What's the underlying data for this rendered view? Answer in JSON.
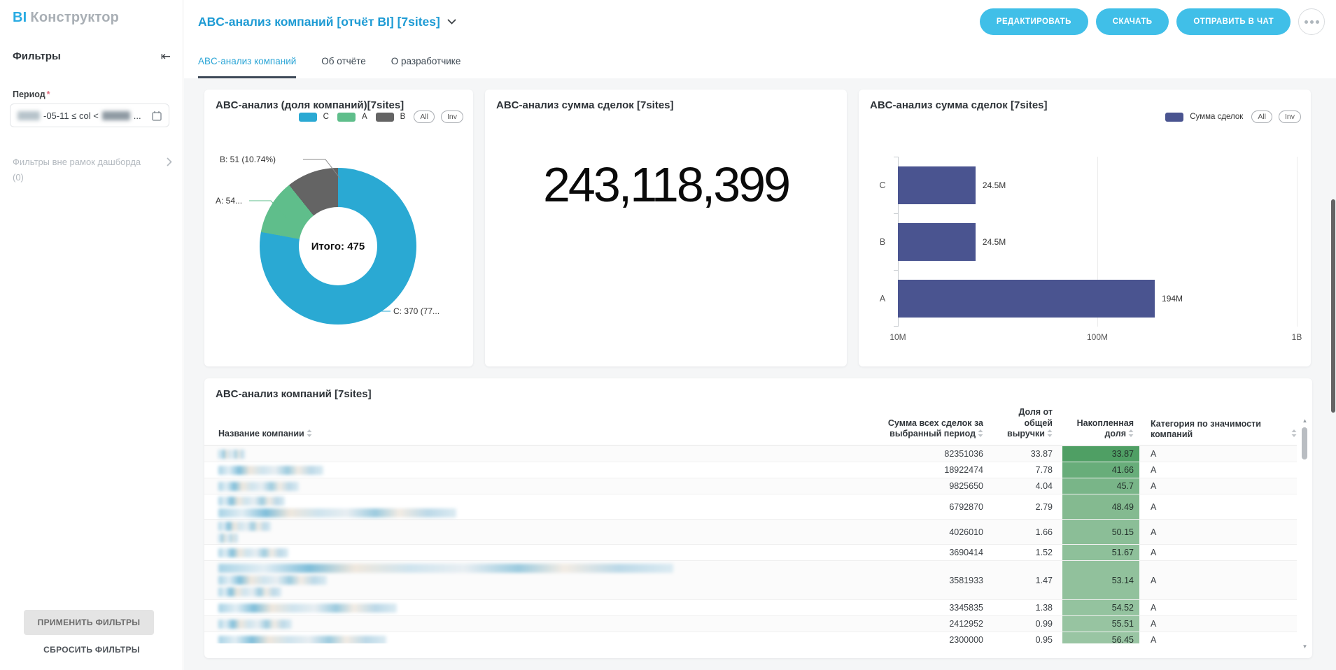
{
  "app": {
    "logo_primary": "BI",
    "logo_secondary": "Конструктор"
  },
  "sidebar": {
    "panel_title": "Фильтры",
    "collapse_icon": "⇤",
    "period_label": "Период",
    "period_required": "*",
    "period_value_mid": "-05-11 ≤ col <",
    "period_value_tail": "...",
    "outer_filters_label": "Фильтры вне рамок дашборда",
    "outer_filters_count": "(0)",
    "apply_button": "ПРИМЕНИТЬ ФИЛЬТРЫ",
    "reset_button": "СБРОСИТЬ ФИЛЬТРЫ"
  },
  "header": {
    "report_title": "ABC-анализ компаний [отчёт BI] [7sites]",
    "edit_button": "РЕДАКТИРОВАТЬ",
    "download_button": "СКАЧАТЬ",
    "send_chat_button": "ОТПРАВИТЬ В ЧАТ"
  },
  "tabs": {
    "tab1": "ABC-анализ компаний",
    "tab2": "Об отчёте",
    "tab3": "О разработчике"
  },
  "donut_card": {
    "title": "ABC-анализ (доля компаний)[7sites]",
    "legend": [
      {
        "label": "C",
        "color": "#2aa9d3"
      },
      {
        "label": "A",
        "color": "#5fbe8b"
      },
      {
        "label": "B",
        "color": "#646464"
      }
    ],
    "all_button": "All",
    "inv_button": "Inv",
    "center_label": "Итого: 475",
    "label_b": "B: 51 (10.74%)",
    "label_a": "A: 54...",
    "label_c": "C: 370 (77..."
  },
  "kpi_card": {
    "title": "ABC-анализ сумма сделок [7sites]",
    "value": "243,118,399"
  },
  "bar_card": {
    "title": "ABC-анализ сумма сделок [7sites]",
    "legend_label": "Сумма сделок",
    "legend_color": "#4a5490",
    "all_button": "All",
    "inv_button": "Inv"
  },
  "table_card": {
    "title": "ABC-анализ компаний [7sites]",
    "columns": [
      "Название компании",
      "Сумма всех сделок за выбранный период",
      "Доля от общей выручки",
      "Накопленная доля",
      "Категория по значимости компаний"
    ]
  },
  "chart_data": [
    {
      "type": "pie",
      "title": "ABC-анализ (доля компаний)[7sites]",
      "categories": [
        "C",
        "A",
        "B"
      ],
      "values": [
        370,
        54,
        51
      ],
      "percentages": [
        77.89,
        11.37,
        10.74
      ],
      "total": 475,
      "total_label": "Итого: 475",
      "colors": [
        "#2aa9d3",
        "#5fbe8b",
        "#646464"
      ],
      "legend_position": "top-right",
      "labels": [
        "C: 370 (77...",
        "A: 54...",
        "B: 51 (10.74%)"
      ]
    },
    {
      "type": "kpi",
      "title": "ABC-анализ сумма сделок [7sites]",
      "value": 243118399,
      "display": "243,118,399"
    },
    {
      "type": "bar",
      "title": "ABC-анализ сумма сделок [7sites]",
      "orientation": "horizontal",
      "series_name": "Сумма сделок",
      "categories": [
        "C",
        "B",
        "A"
      ],
      "values": [
        24500000,
        24500000,
        194000000
      ],
      "value_labels": [
        "24.5M",
        "24.5M",
        "194M"
      ],
      "x_scale": "log",
      "x_range": [
        10000000,
        1000000000
      ],
      "x_ticks": [
        "10M",
        "100M",
        "1B"
      ],
      "grid": true,
      "color": "#4a5490"
    },
    {
      "type": "table",
      "title": "ABC-анализ компаний [7sites]",
      "columns": [
        "Название компании",
        "Сумма всех сделок за выбранный период",
        "Доля от общей выручки",
        "Накопленная доля",
        "Категория по значимости компаний"
      ],
      "rows": [
        {
          "sum": "82351036",
          "share": "33.87",
          "cum": "33.87",
          "cat": "A",
          "cum_color": "#4f9f64",
          "name_lines": [
            38
          ]
        },
        {
          "sum": "18922474",
          "share": "7.78",
          "cum": "41.66",
          "cat": "A",
          "cum_color": "#68ad7a",
          "name_lines": [
            150
          ]
        },
        {
          "sum": "9825650",
          "share": "4.04",
          "cum": "45.7",
          "cat": "A",
          "cum_color": "#79b588",
          "name_lines": [
            115
          ]
        },
        {
          "sum": "6792870",
          "share": "2.79",
          "cum": "48.49",
          "cat": "A",
          "cum_color": "#84ba90",
          "name_lines": [
            95,
            340
          ]
        },
        {
          "sum": "4026010",
          "share": "1.66",
          "cum": "50.15",
          "cat": "A",
          "cum_color": "#8bbe97",
          "name_lines": [
            75,
            28
          ]
        },
        {
          "sum": "3690414",
          "share": "1.52",
          "cum": "51.67",
          "cat": "A",
          "cum_color": "#8ec09a",
          "name_lines": [
            100
          ]
        },
        {
          "sum": "3581933",
          "share": "1.47",
          "cum": "53.14",
          "cat": "A",
          "cum_color": "#91c19c",
          "name_lines": [
            650,
            155,
            90
          ]
        },
        {
          "sum": "3345835",
          "share": "1.38",
          "cum": "54.52",
          "cat": "A",
          "cum_color": "#94c39f",
          "name_lines": [
            255
          ]
        },
        {
          "sum": "2412952",
          "share": "0.99",
          "cum": "55.51",
          "cat": "A",
          "cum_color": "#97c4a1",
          "name_lines": [
            105
          ]
        },
        {
          "sum": "2300000",
          "share": "0.95",
          "cum": "56.45",
          "cat": "A",
          "cum_color": "#99c5a3",
          "name_lines": [
            240
          ]
        }
      ]
    }
  ]
}
